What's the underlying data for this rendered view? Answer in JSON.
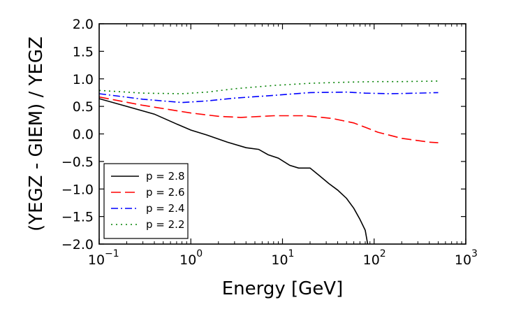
{
  "chart_data": {
    "type": "line",
    "xscale": "log",
    "xlim": [
      0.1,
      1000
    ],
    "ylim": [
      -2.0,
      2.0
    ],
    "xlabel": "Energy [GeV]",
    "ylabel": "(YEGZ - GIEM) / YEGZ",
    "x_ticks": [
      {
        "value": 0.1,
        "base": "10",
        "exp": "−1"
      },
      {
        "value": 1,
        "base": "10",
        "exp": "0"
      },
      {
        "value": 10,
        "base": "10",
        "exp": "1"
      },
      {
        "value": 100,
        "base": "10",
        "exp": "2"
      },
      {
        "value": 1000,
        "base": "10",
        "exp": "3"
      }
    ],
    "y_ticks": [
      {
        "value": 2.0,
        "label": "2.0"
      },
      {
        "value": 1.5,
        "label": "1.5"
      },
      {
        "value": 1.0,
        "label": "1.0"
      },
      {
        "value": 0.5,
        "label": "0.5"
      },
      {
        "value": 0.0,
        "label": "0.0"
      },
      {
        "value": -0.5,
        "label": "−0.5"
      },
      {
        "value": -1.0,
        "label": "−1.0"
      },
      {
        "value": -1.5,
        "label": "−1.5"
      },
      {
        "value": -2.0,
        "label": "−2.0"
      }
    ],
    "legend_position": "lower-left",
    "series": [
      {
        "name": "p = 2.8",
        "color": "#000000",
        "style": "solid",
        "x": [
          0.1,
          0.2,
          0.4,
          0.7,
          1.0,
          1.5,
          2.5,
          4.0,
          5.5,
          7.0,
          9.0,
          12.0,
          15.0,
          20.0,
          25.0,
          32.0,
          40.0,
          50.0,
          60.0,
          70.0,
          80.0,
          85.0
        ],
        "y": [
          0.64,
          0.5,
          0.36,
          0.18,
          0.07,
          -0.02,
          -0.15,
          -0.25,
          -0.28,
          -0.38,
          -0.44,
          -0.57,
          -0.62,
          -0.62,
          -0.75,
          -0.9,
          -1.02,
          -1.17,
          -1.35,
          -1.55,
          -1.75,
          -2.0
        ]
      },
      {
        "name": "p = 2.6",
        "color": "#ff0000",
        "style": "dashed",
        "x": [
          0.1,
          0.3,
          1.0,
          2.0,
          3.5,
          8.0,
          18.0,
          35.0,
          60.0,
          80.0,
          110.0,
          200.0,
          400.0,
          500.0
        ],
        "y": [
          0.67,
          0.52,
          0.38,
          0.32,
          0.3,
          0.33,
          0.33,
          0.28,
          0.2,
          0.12,
          0.03,
          -0.08,
          -0.15,
          -0.16
        ]
      },
      {
        "name": "p = 2.4",
        "color": "#0000ff",
        "style": "dashdot",
        "x": [
          0.1,
          0.3,
          0.8,
          1.5,
          3.0,
          8.0,
          20.0,
          50.0,
          80.0,
          150.0,
          300.0,
          500.0
        ],
        "y": [
          0.73,
          0.63,
          0.57,
          0.6,
          0.65,
          0.7,
          0.75,
          0.76,
          0.74,
          0.73,
          0.74,
          0.75
        ]
      },
      {
        "name": "p = 2.2",
        "color": "#008000",
        "style": "dotted",
        "x": [
          0.1,
          0.3,
          0.8,
          1.5,
          3.0,
          8.0,
          20.0,
          50.0,
          100.0,
          200.0,
          500.0
        ],
        "y": [
          0.79,
          0.74,
          0.73,
          0.76,
          0.82,
          0.88,
          0.92,
          0.94,
          0.95,
          0.95,
          0.96
        ]
      }
    ]
  }
}
